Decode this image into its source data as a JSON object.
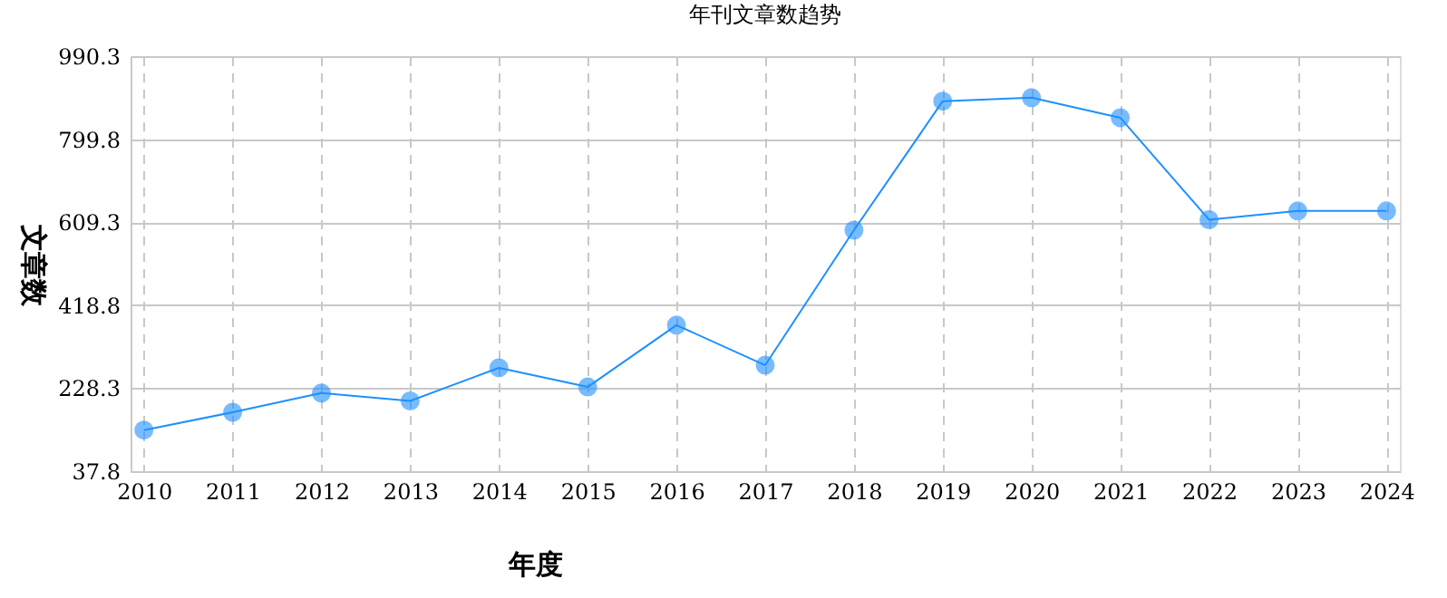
{
  "chart_data": {
    "type": "line",
    "title": "年刊文章数趋势",
    "xlabel": "年度",
    "ylabel": "文章数",
    "categories": [
      "2010",
      "2011",
      "2012",
      "2013",
      "2014",
      "2015",
      "2016",
      "2017",
      "2018",
      "2019",
      "2020",
      "2021",
      "2022",
      "2023",
      "2024"
    ],
    "series": [
      {
        "color": "#1e90ff",
        "values": [
          132,
          173,
          217,
          199,
          275,
          231,
          373,
          281,
          591,
          887,
          895,
          849,
          615,
          635,
          635
        ]
      }
    ],
    "ylim": [
      37.8,
      990.3
    ],
    "yticks": [
      37.8,
      228.3,
      418.8,
      609.3,
      799.8,
      990.3
    ],
    "grid": true,
    "marker": "circle",
    "line_style": "solid"
  }
}
